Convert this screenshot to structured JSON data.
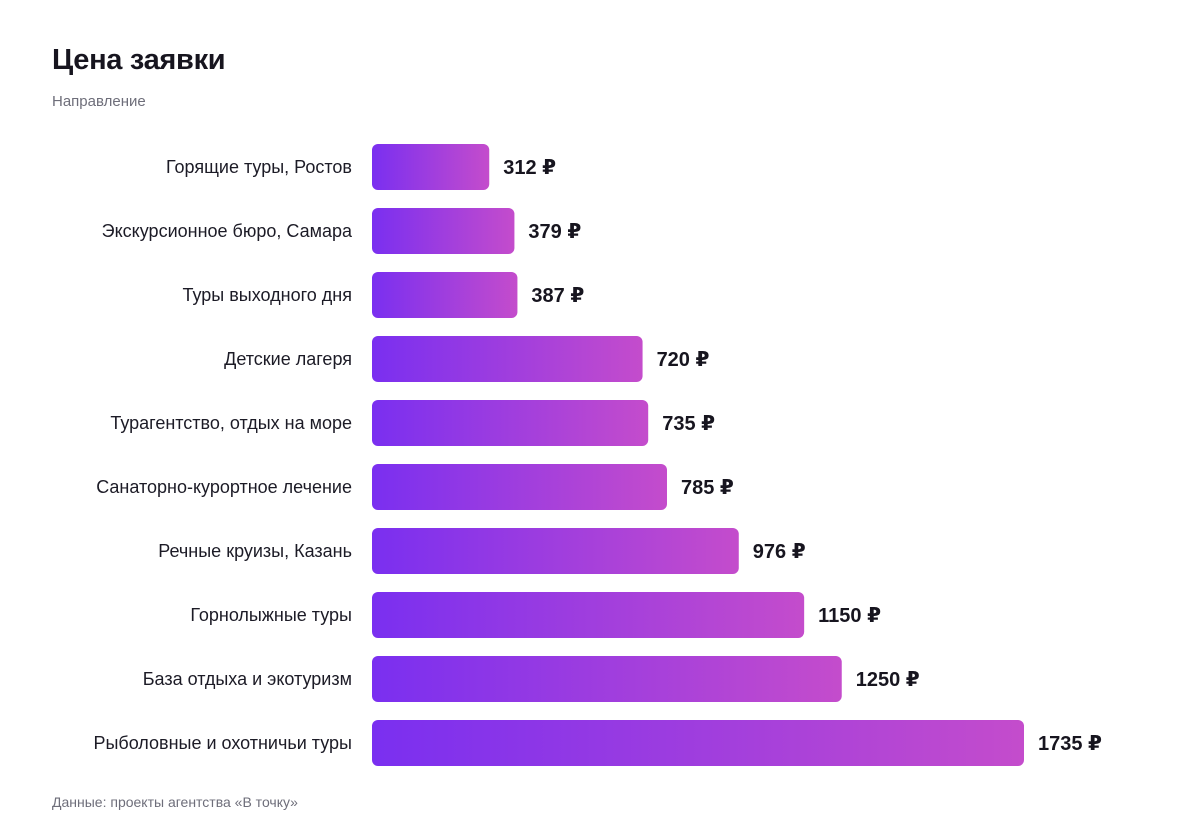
{
  "colors": {
    "bar_start": "#7a2ff0",
    "bar_end": "#c44ccc"
  },
  "chart_data": {
    "type": "bar",
    "orientation": "horizontal",
    "title": "Цена заявки",
    "subtitle": "Направление",
    "source": "Данные: проекты агентства «В точку»",
    "value_suffix": " ₽",
    "xlim": [
      0,
      1735
    ],
    "grid": false,
    "legend": "none",
    "categories": [
      "Горящие туры, Ростов",
      "Экскурсионное бюро, Самара",
      "Туры выходного дня",
      "Детские лагеря",
      "Турагентство, отдых на море",
      "Санаторно-курортное лечение",
      "Речные круизы, Казань",
      "Горнолыжные туры",
      "База отдыха и экотуризм",
      "Рыболовные и охотничьи туры"
    ],
    "values": [
      312,
      379,
      387,
      720,
      735,
      785,
      976,
      1150,
      1250,
      1735
    ]
  }
}
